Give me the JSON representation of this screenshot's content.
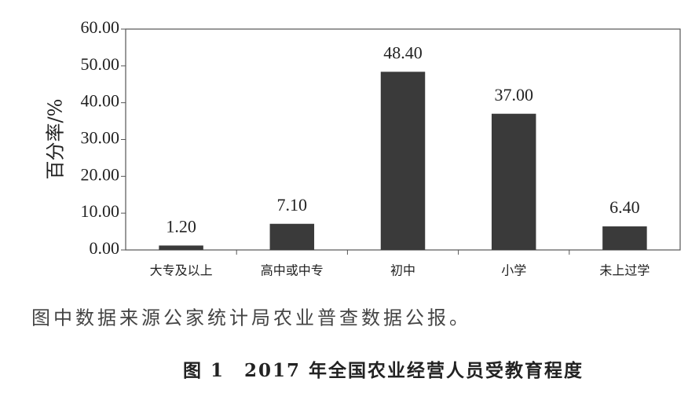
{
  "chart_data": {
    "type": "bar",
    "ylabel": "百分率/%",
    "categories": [
      "大专及以上",
      "高中或中专",
      "初中",
      "小学",
      "未上过学"
    ],
    "values": [
      1.2,
      7.1,
      48.4,
      37,
      6.4
    ],
    "value_labels": [
      "1.20",
      "7.10",
      "48.40",
      "37.00",
      "6.40"
    ],
    "color": "#3a3a3a",
    "ylim": [
      0,
      60
    ],
    "yticks": [
      {
        "value": 0,
        "label": "0.00"
      },
      {
        "value": 10,
        "label": "10.00"
      },
      {
        "value": 20,
        "label": "20.00"
      },
      {
        "value": 30,
        "label": "30.00"
      },
      {
        "value": 40,
        "label": "40.00"
      },
      {
        "value": 50,
        "label": "50.00"
      },
      {
        "value": 60,
        "label": "60.00"
      }
    ],
    "note": "图中数据来源公家统计局农业普查数据公报。",
    "caption": "图 1　2017 年全国农业经营人员受教育程度"
  }
}
